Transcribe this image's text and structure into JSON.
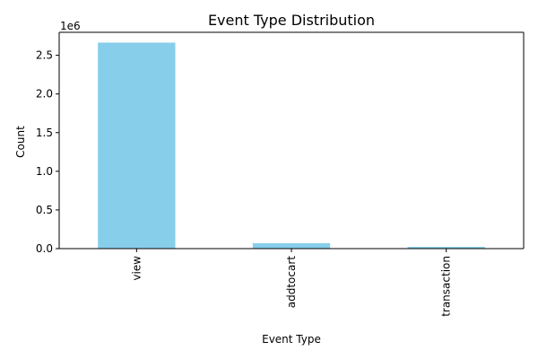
{
  "chart_data": {
    "type": "bar",
    "title": "Event Type Distribution",
    "xlabel": "Event Type",
    "ylabel": "Count",
    "categories": [
      "view",
      "addtocart",
      "transaction"
    ],
    "values": [
      2664312,
      69332,
      22457
    ],
    "ylim": [
      0,
      2797528
    ],
    "yticks": [
      0,
      500000,
      1000000,
      1500000,
      2000000,
      2500000
    ],
    "ytick_labels": [
      "0.0",
      "0.5",
      "1.0",
      "1.5",
      "2.0",
      "2.5"
    ],
    "offset_label": "1e6",
    "bar_color": "#87ceeb",
    "grid": false,
    "legend": false
  }
}
